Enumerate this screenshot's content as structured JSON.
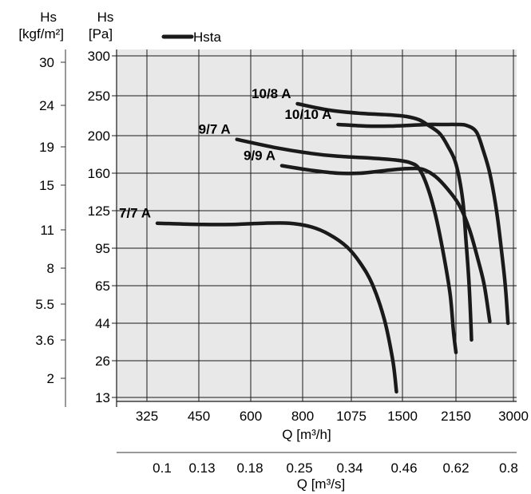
{
  "chart_data": {
    "type": "line",
    "legend": {
      "label": "Hsta",
      "placement": "top-left",
      "color": "#1a1a1a"
    },
    "x_axis_primary": {
      "label": "Q [m³/h]",
      "ticks": [
        "325",
        "450",
        "600",
        "800",
        "1075",
        "1500",
        "2150",
        "3000"
      ]
    },
    "x_axis_secondary": {
      "label": "Q [m³/s]",
      "ticks": [
        "0.1",
        "0.13",
        "0.18",
        "0.25",
        "0.34",
        "0.46",
        "0.62",
        "0.8"
      ]
    },
    "y_axis_primary": {
      "title_line1": "Hs",
      "title_line2": "[Pa]",
      "ticks": [
        "13",
        "26",
        "44",
        "65",
        "95",
        "125",
        "160",
        "200",
        "250",
        "300"
      ]
    },
    "y_axis_secondary": {
      "title_line1": "Hs",
      "title_line2": "[kgf/m²]",
      "ticks": [
        "2",
        "3.6",
        "5.5",
        "8",
        "11",
        "15",
        "19",
        "24",
        "30"
      ]
    },
    "grid": true,
    "plot_background": "#e8e8e8",
    "curve_color": "#1a1a1a",
    "series": [
      {
        "name": "7/7 A",
        "points": [
          [
            350,
            115
          ],
          [
            450,
            114
          ],
          [
            550,
            114
          ],
          [
            650,
            115
          ],
          [
            750,
            115
          ],
          [
            850,
            112
          ],
          [
            950,
            106
          ],
          [
            1050,
            96
          ],
          [
            1150,
            83
          ],
          [
            1250,
            66
          ],
          [
            1350,
            46
          ],
          [
            1420,
            26
          ],
          [
            1450,
            15
          ]
        ]
      },
      {
        "name": "9/7 A",
        "points": [
          [
            560,
            196
          ],
          [
            700,
            187
          ],
          [
            850,
            181
          ],
          [
            1000,
            178
          ],
          [
            1250,
            176
          ],
          [
            1450,
            174
          ],
          [
            1600,
            171
          ],
          [
            1700,
            165
          ],
          [
            1800,
            148
          ],
          [
            1900,
            122
          ],
          [
            2000,
            90
          ],
          [
            2080,
            60
          ],
          [
            2120,
            40
          ],
          [
            2150,
            30
          ]
        ]
      },
      {
        "name": "9/9 A",
        "points": [
          [
            720,
            168
          ],
          [
            850,
            163
          ],
          [
            1000,
            160
          ],
          [
            1150,
            160
          ],
          [
            1300,
            162
          ],
          [
            1450,
            164
          ],
          [
            1600,
            165
          ],
          [
            1750,
            164
          ],
          [
            1900,
            157
          ],
          [
            2050,
            145
          ],
          [
            2200,
            130
          ],
          [
            2350,
            110
          ],
          [
            2480,
            85
          ],
          [
            2570,
            65
          ],
          [
            2650,
            45
          ]
        ]
      },
      {
        "name": "10/8 A",
        "points": [
          [
            780,
            240
          ],
          [
            950,
            232
          ],
          [
            1150,
            228
          ],
          [
            1400,
            226
          ],
          [
            1550,
            224
          ],
          [
            1700,
            220
          ],
          [
            1800,
            214
          ],
          [
            1950,
            203
          ],
          [
            2050,
            189
          ],
          [
            2150,
            170
          ],
          [
            2250,
            135
          ],
          [
            2300,
            100
          ],
          [
            2340,
            70
          ],
          [
            2370,
            45
          ],
          [
            2380,
            36
          ]
        ]
      },
      {
        "name": "10/10 A",
        "points": [
          [
            1000,
            214
          ],
          [
            1200,
            212
          ],
          [
            1400,
            212
          ],
          [
            1600,
            213
          ],
          [
            1800,
            214
          ],
          [
            2000,
            214
          ],
          [
            2150,
            214
          ],
          [
            2300,
            213
          ],
          [
            2450,
            205
          ],
          [
            2550,
            185
          ],
          [
            2650,
            160
          ],
          [
            2750,
            125
          ],
          [
            2830,
            90
          ],
          [
            2880,
            65
          ],
          [
            2920,
            44
          ]
        ]
      }
    ]
  }
}
